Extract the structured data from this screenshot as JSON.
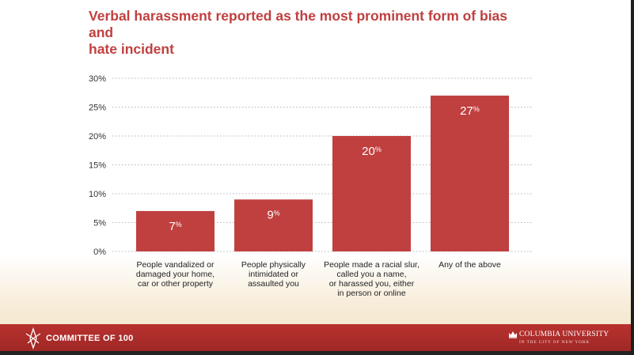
{
  "title_lines": [
    "Verbal harassment reported as the most prominent form of bias and",
    "hate incident"
  ],
  "footer": {
    "left_brand": "COMMITTEE OF 100",
    "right_brand": "COLUMBIA UNIVERSITY",
    "right_sub": "IN THE CITY OF NEW YORK"
  },
  "colors": {
    "bar": "#c0403f",
    "title": "#c0403f",
    "footer": "#a92b29"
  },
  "chart_data": {
    "type": "bar",
    "title": "Verbal harassment reported as the most prominent form of bias and hate incident",
    "categories": [
      [
        "People vandalized or",
        "damaged your home,",
        "car or other property"
      ],
      [
        "People physically",
        "intimidated or",
        "assaulted you"
      ],
      [
        "People made a racial slur,",
        "called you a name,",
        "or harassed you, either",
        "in person or online"
      ],
      [
        "Any of the above"
      ]
    ],
    "values": [
      7,
      9,
      20,
      27
    ],
    "value_labels": [
      {
        "num": "7",
        "unit": "%"
      },
      {
        "num": "9",
        "unit": "%"
      },
      {
        "num": "20",
        "unit": "%"
      },
      {
        "num": "27",
        "unit": "%"
      }
    ],
    "yticks": [
      "0%",
      "5%",
      "10%",
      "15%",
      "20%",
      "25%",
      "30%"
    ],
    "ytick_values": [
      0,
      5,
      10,
      15,
      20,
      25,
      30
    ],
    "ylim": [
      0,
      30
    ],
    "grid": true,
    "xlabel": "",
    "ylabel": ""
  }
}
